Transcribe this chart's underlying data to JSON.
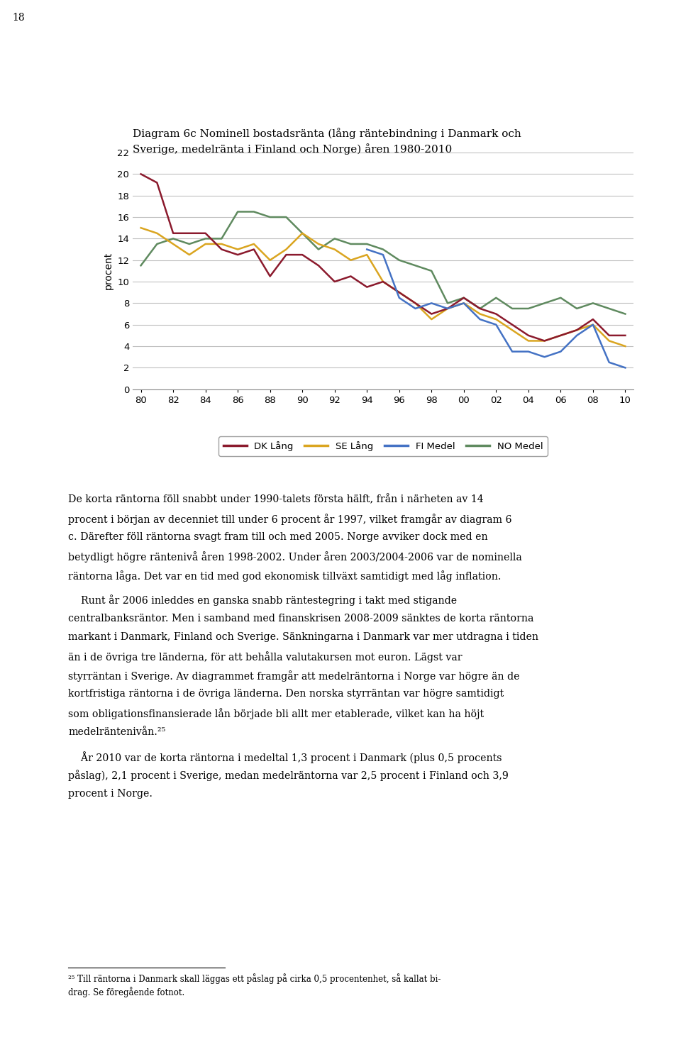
{
  "title_line1": "Diagram 6c Nominell bostadsränta (lång räntebindning i Danmark och",
  "title_line2": "Sverige, medelränta i Finland och Norge) åren 1980-2010",
  "ylabel": "procent",
  "page_number": "18",
  "years": [
    1980,
    1981,
    1982,
    1983,
    1984,
    1985,
    1986,
    1987,
    1988,
    1989,
    1990,
    1991,
    1992,
    1993,
    1994,
    1995,
    1996,
    1997,
    1998,
    1999,
    2000,
    2001,
    2002,
    2003,
    2004,
    2005,
    2006,
    2007,
    2008,
    2009,
    2010
  ],
  "DK_lang": [
    20.0,
    19.2,
    14.5,
    14.5,
    14.5,
    13.0,
    12.5,
    13.0,
    10.5,
    12.5,
    12.5,
    11.5,
    10.0,
    10.5,
    9.5,
    10.0,
    9.0,
    8.0,
    7.0,
    7.5,
    8.5,
    7.5,
    7.0,
    6.0,
    5.0,
    4.5,
    5.0,
    5.5,
    6.5,
    5.0,
    5.0
  ],
  "SE_lang": [
    15.0,
    14.5,
    13.5,
    12.5,
    13.5,
    13.5,
    13.0,
    13.5,
    12.0,
    13.0,
    14.5,
    13.5,
    13.0,
    12.0,
    12.5,
    10.0,
    9.0,
    8.0,
    6.5,
    7.5,
    8.0,
    7.0,
    6.5,
    5.5,
    4.5,
    4.5,
    5.0,
    5.5,
    6.0,
    4.5,
    4.0
  ],
  "FI_medel": [
    null,
    null,
    null,
    null,
    null,
    null,
    null,
    null,
    null,
    null,
    null,
    null,
    null,
    null,
    13.0,
    12.5,
    8.5,
    7.5,
    8.0,
    7.5,
    8.0,
    6.5,
    6.0,
    3.5,
    3.5,
    3.0,
    3.5,
    5.0,
    6.0,
    2.5,
    2.0
  ],
  "NO_medel": [
    11.5,
    13.5,
    14.0,
    13.5,
    14.0,
    14.0,
    16.5,
    16.5,
    16.0,
    16.0,
    14.5,
    13.0,
    14.0,
    13.5,
    13.5,
    13.0,
    12.0,
    11.5,
    11.0,
    8.0,
    8.5,
    7.5,
    8.5,
    7.5,
    7.5,
    8.0,
    8.5,
    7.5,
    8.0,
    7.5,
    7.0
  ],
  "colors": {
    "DK_lang": "#8B1A2D",
    "SE_lang": "#DAA520",
    "FI_medel": "#4472C4",
    "NO_medel": "#5F8A5F"
  },
  "legend_labels": [
    "DK Lång",
    "SE Lång",
    "FI Medel",
    "NO Medel"
  ],
  "ylim": [
    0,
    22
  ],
  "yticks": [
    0,
    2,
    4,
    6,
    8,
    10,
    12,
    14,
    16,
    18,
    20,
    22
  ],
  "xtick_labels": [
    "80",
    "82",
    "84",
    "86",
    "88",
    "90",
    "92",
    "94",
    "96",
    "98",
    "00",
    "02",
    "04",
    "06",
    "08",
    "10"
  ],
  "background_color": "#ffffff",
  "grid_color": "#C0C0C0"
}
